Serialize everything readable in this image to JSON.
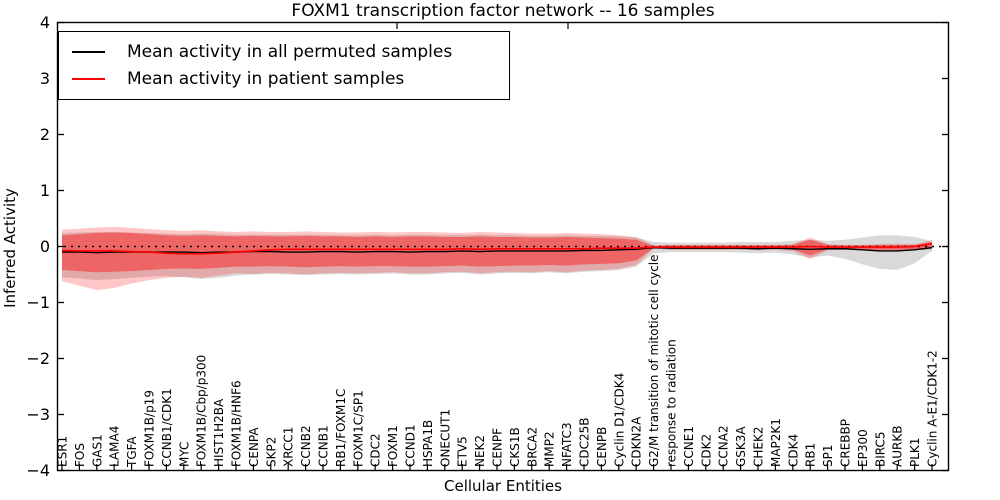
{
  "title": "FOXM1 transcription factor network -- 16 samples",
  "legend": {
    "items": [
      {
        "label": "Mean activity in all permuted samples",
        "color": "#000000"
      },
      {
        "label": "Mean activity in patient samples",
        "color": "#ff0000"
      }
    ]
  },
  "chart_data": {
    "type": "line",
    "title": "FOXM1 transcription factor network -- 16 samples",
    "xlabel": "Cellular Entities",
    "ylabel": "Inferred Activity",
    "ylim": [
      -4,
      4
    ],
    "ytick_labels": [
      "4",
      "3",
      "2",
      "1",
      "0",
      "−1",
      "−2",
      "−3",
      "−4"
    ],
    "ytick_values": [
      4,
      3,
      2,
      1,
      0,
      -1,
      -2,
      -3,
      -4
    ],
    "zero_line": true,
    "legend_position": "upper-left",
    "categories": [
      "ESR1",
      "FOS",
      "GAS1",
      "LAMA4",
      "TGFA",
      "FOXM1B/p19",
      "CCNB1/CDK1",
      "MYC",
      "FOXM1B/Cbp/p300",
      "HIST1H2BA",
      "FOXM1B/HNF6",
      "CENPA",
      "SKP2",
      "XRCC1",
      "CCNB2",
      "CCNB1",
      "RB1/FOXM1C",
      "FOXM1C/SP1",
      "CDC2",
      "FOXM1",
      "CCND1",
      "HSPA1B",
      "ONECUT1",
      "ETV5",
      "NEK2",
      "CENPF",
      "CKS1B",
      "BRCA2",
      "MMP2",
      "NFATC3",
      "CDC25B",
      "CENPB",
      "Cyclin D1/CDK4",
      "CDKN2A",
      "G2/M transition of mitotic cell cycle",
      "response to radiation",
      "CCNE1",
      "CDK2",
      "CCNA2",
      "GSK3A",
      "CHEK2",
      "MAP2K1",
      "CDK4",
      "RB1",
      "SP1",
      "CREBBP",
      "EP300",
      "BIRC5",
      "AURKB",
      "PLK1",
      "Cyclin A-E1/CDK1-2"
    ],
    "series": [
      {
        "name": "Mean activity in all permuted samples",
        "color": "#000000",
        "values": [
          -0.1,
          -0.1,
          -0.11,
          -0.1,
          -0.1,
          -0.1,
          -0.1,
          -0.1,
          -0.11,
          -0.1,
          -0.1,
          -0.09,
          -0.09,
          -0.1,
          -0.1,
          -0.09,
          -0.09,
          -0.1,
          -0.09,
          -0.09,
          -0.1,
          -0.09,
          -0.09,
          -0.08,
          -0.09,
          -0.08,
          -0.08,
          -0.08,
          -0.08,
          -0.08,
          -0.07,
          -0.07,
          -0.06,
          -0.05,
          -0.02,
          -0.03,
          -0.03,
          -0.03,
          -0.03,
          -0.03,
          -0.04,
          -0.03,
          -0.04,
          -0.05,
          -0.04,
          -0.04,
          -0.06,
          -0.08,
          -0.08,
          -0.06,
          -0.02
        ]
      },
      {
        "name": "Mean activity in patient samples",
        "color": "#ff0000",
        "values": [
          -0.07,
          -0.08,
          -0.08,
          -0.08,
          -0.09,
          -0.1,
          -0.12,
          -0.13,
          -0.13,
          -0.12,
          -0.1,
          -0.08,
          -0.06,
          -0.05,
          -0.05,
          -0.05,
          -0.05,
          -0.05,
          -0.05,
          -0.05,
          -0.05,
          -0.05,
          -0.05,
          -0.04,
          -0.05,
          -0.04,
          -0.04,
          -0.04,
          -0.04,
          -0.04,
          -0.04,
          -0.03,
          -0.03,
          -0.03,
          -0.01,
          -0.01,
          -0.01,
          -0.01,
          -0.01,
          -0.01,
          -0.01,
          -0.01,
          -0.01,
          0.0,
          -0.01,
          -0.01,
          -0.01,
          -0.01,
          -0.01,
          0.0,
          0.05
        ]
      }
    ],
    "bands": [
      {
        "name": "permuted-samples-range",
        "color": "#000000",
        "opacity": 0.15,
        "top": [
          0.24,
          0.25,
          0.26,
          0.26,
          0.25,
          0.24,
          0.23,
          0.22,
          0.23,
          0.22,
          0.21,
          0.21,
          0.21,
          0.21,
          0.21,
          0.21,
          0.2,
          0.2,
          0.21,
          0.2,
          0.21,
          0.21,
          0.2,
          0.2,
          0.21,
          0.2,
          0.2,
          0.19,
          0.19,
          0.2,
          0.19,
          0.19,
          0.18,
          0.16,
          0.08,
          0.07,
          0.07,
          0.07,
          0.07,
          0.08,
          0.08,
          0.08,
          0.1,
          0.12,
          0.1,
          0.12,
          0.16,
          0.2,
          0.2,
          0.17,
          0.1
        ],
        "bottom": [
          -0.55,
          -0.57,
          -0.6,
          -0.58,
          -0.56,
          -0.54,
          -0.53,
          -0.55,
          -0.58,
          -0.56,
          -0.52,
          -0.5,
          -0.49,
          -0.5,
          -0.51,
          -0.5,
          -0.49,
          -0.5,
          -0.49,
          -0.48,
          -0.5,
          -0.5,
          -0.48,
          -0.47,
          -0.5,
          -0.48,
          -0.47,
          -0.48,
          -0.46,
          -0.48,
          -0.45,
          -0.44,
          -0.42,
          -0.36,
          -0.12,
          -0.1,
          -0.1,
          -0.1,
          -0.1,
          -0.11,
          -0.12,
          -0.11,
          -0.14,
          -0.2,
          -0.16,
          -0.22,
          -0.32,
          -0.4,
          -0.42,
          -0.3,
          -0.08
        ]
      },
      {
        "name": "patient-samples-outer-band",
        "color": "#ff0000",
        "opacity": 0.22,
        "top": [
          0.3,
          0.32,
          0.34,
          0.35,
          0.33,
          0.31,
          0.29,
          0.28,
          0.29,
          0.27,
          0.26,
          0.27,
          0.26,
          0.26,
          0.27,
          0.26,
          0.25,
          0.25,
          0.26,
          0.25,
          0.26,
          0.26,
          0.25,
          0.24,
          0.26,
          0.25,
          0.24,
          0.23,
          0.23,
          0.24,
          0.23,
          0.22,
          0.2,
          0.17,
          0.02,
          0.03,
          0.03,
          0.03,
          0.03,
          0.03,
          0.03,
          0.03,
          0.04,
          0.16,
          0.04,
          0.03,
          0.03,
          0.04,
          0.05,
          0.04,
          0.11
        ],
        "bottom": [
          -0.62,
          -0.7,
          -0.78,
          -0.74,
          -0.66,
          -0.6,
          -0.56,
          -0.54,
          -0.56,
          -0.52,
          -0.48,
          -0.49,
          -0.47,
          -0.48,
          -0.5,
          -0.48,
          -0.47,
          -0.48,
          -0.47,
          -0.46,
          -0.48,
          -0.48,
          -0.46,
          -0.45,
          -0.48,
          -0.46,
          -0.45,
          -0.46,
          -0.44,
          -0.46,
          -0.43,
          -0.42,
          -0.4,
          -0.33,
          -0.04,
          -0.06,
          -0.06,
          -0.06,
          -0.06,
          -0.06,
          -0.07,
          -0.06,
          -0.08,
          -0.22,
          -0.07,
          -0.06,
          -0.07,
          -0.09,
          -0.09,
          -0.07,
          -0.05
        ]
      },
      {
        "name": "patient-samples-inner-band",
        "color": "#ff0000",
        "opacity": 0.4,
        "top": [
          0.2,
          0.22,
          0.24,
          0.25,
          0.24,
          0.22,
          0.2,
          0.19,
          0.2,
          0.19,
          0.18,
          0.19,
          0.18,
          0.18,
          0.19,
          0.18,
          0.18,
          0.17,
          0.18,
          0.17,
          0.18,
          0.18,
          0.17,
          0.17,
          0.18,
          0.17,
          0.17,
          0.16,
          0.16,
          0.17,
          0.16,
          0.15,
          0.14,
          0.12,
          0.01,
          0.02,
          0.02,
          0.02,
          0.02,
          0.02,
          0.02,
          0.02,
          0.03,
          0.12,
          0.03,
          0.02,
          0.02,
          0.03,
          0.03,
          0.03,
          0.08
        ],
        "bottom": [
          -0.42,
          -0.44,
          -0.46,
          -0.45,
          -0.44,
          -0.42,
          -0.4,
          -0.39,
          -0.4,
          -0.38,
          -0.36,
          -0.36,
          -0.35,
          -0.36,
          -0.37,
          -0.36,
          -0.35,
          -0.36,
          -0.35,
          -0.35,
          -0.36,
          -0.36,
          -0.35,
          -0.34,
          -0.36,
          -0.35,
          -0.34,
          -0.34,
          -0.33,
          -0.34,
          -0.32,
          -0.31,
          -0.3,
          -0.25,
          -0.03,
          -0.04,
          -0.04,
          -0.04,
          -0.04,
          -0.04,
          -0.05,
          -0.04,
          -0.05,
          -0.16,
          -0.05,
          -0.04,
          -0.05,
          -0.06,
          -0.06,
          -0.05,
          -0.03
        ]
      }
    ]
  }
}
